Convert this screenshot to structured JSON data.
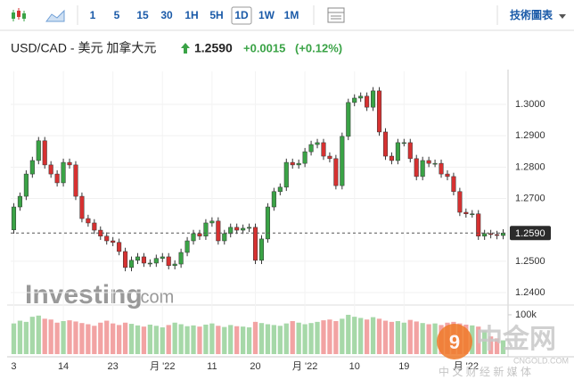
{
  "toolbar": {
    "intervals": [
      "1",
      "5",
      "15",
      "30",
      "1H",
      "5H",
      "1D",
      "1W",
      "1M"
    ],
    "selected": "1D",
    "menu": "技術圖表"
  },
  "header": {
    "pair": "USD/CAD - 美元 加拿大元",
    "price": "1.2590",
    "change": "+0.0015",
    "change_pct": "(+0.12%)"
  },
  "watermarks": {
    "brand": "Investing",
    "brand_suffix": ".com",
    "site": "中金网",
    "site_url": "CNGOLD.COM",
    "site_tagline": "中 文 财 经 新 媒 体"
  },
  "chart_data": {
    "type": "candlestick",
    "categories": [
      "3",
      null,
      null,
      null,
      null,
      null,
      null,
      null,
      "14",
      null,
      null,
      null,
      null,
      null,
      null,
      null,
      "23",
      null,
      null,
      null,
      null,
      null,
      null,
      null,
      "月 '22",
      null,
      null,
      null,
      null,
      null,
      null,
      null,
      "11",
      null,
      null,
      null,
      null,
      null,
      null,
      "20",
      null,
      null,
      null,
      null,
      null,
      null,
      null,
      "月 '22",
      null,
      null,
      null,
      null,
      null,
      null,
      null,
      "10",
      null,
      null,
      null,
      null,
      null,
      null,
      null,
      "19",
      null,
      null,
      null,
      null,
      null,
      null,
      null,
      null,
      null,
      "月 '22",
      null,
      null,
      null,
      null,
      null,
      null
    ],
    "open": [
      1.26,
      1.2673,
      1.2707,
      1.2778,
      1.2821,
      1.2884,
      1.2807,
      1.2778,
      1.275,
      1.2815,
      1.2807,
      1.2707,
      1.2636,
      1.2622,
      1.2599,
      1.258,
      1.2565,
      1.256,
      1.2531,
      1.248,
      1.2503,
      1.2514,
      1.2494,
      1.2494,
      1.2509,
      1.2514,
      1.2486,
      1.2491,
      1.2528,
      1.2565,
      1.2588,
      1.258,
      1.2622,
      1.2628,
      1.2565,
      1.2588,
      1.2608,
      1.2599,
      1.2605,
      1.2608,
      1.2503,
      1.2571,
      1.2673,
      1.2722,
      1.2736,
      1.2815,
      1.2807,
      1.2812,
      1.2849,
      1.2872,
      1.2878,
      1.2835,
      1.2827,
      1.2741,
      1.2898,
      1.3006,
      1.302,
      1.3026,
      1.2991,
      1.3043,
      1.2912,
      1.2835,
      1.2821,
      1.2878,
      1.2878,
      1.2827,
      1.277,
      1.2821,
      1.2812,
      1.2812,
      1.2778,
      1.277,
      1.2722,
      1.2656,
      1.2651,
      1.2651,
      1.258,
      1.2588,
      1.2585,
      1.2582
    ],
    "high": [
      1.2685,
      1.2719,
      1.279,
      1.2833,
      1.2896,
      1.2896,
      1.2819,
      1.279,
      1.2827,
      1.2827,
      1.2819,
      1.2719,
      1.2648,
      1.2634,
      1.2611,
      1.2592,
      1.2577,
      1.2572,
      1.2543,
      1.2515,
      1.2526,
      1.2526,
      1.2506,
      1.2521,
      1.2526,
      1.2526,
      1.2503,
      1.254,
      1.2577,
      1.26,
      1.26,
      1.2634,
      1.264,
      1.264,
      1.26,
      1.262,
      1.262,
      1.2617,
      1.262,
      1.262,
      1.2583,
      1.2685,
      1.2734,
      1.2748,
      1.2827,
      1.2827,
      1.2824,
      1.2861,
      1.2884,
      1.289,
      1.289,
      1.2847,
      1.2839,
      1.291,
      1.3018,
      1.3032,
      1.3038,
      1.3038,
      1.3055,
      1.3055,
      1.2924,
      1.2847,
      1.289,
      1.289,
      1.289,
      1.2839,
      1.2833,
      1.2833,
      1.2824,
      1.2824,
      1.279,
      1.2782,
      1.2734,
      1.2668,
      1.2663,
      1.2663,
      1.26,
      1.26,
      1.2597,
      1.2602
    ],
    "low": [
      1.2588,
      1.2661,
      1.2695,
      1.2766,
      1.2809,
      1.2795,
      1.2766,
      1.2738,
      1.2738,
      1.2795,
      1.2695,
      1.2624,
      1.261,
      1.2587,
      1.2568,
      1.2553,
      1.2548,
      1.2519,
      1.2468,
      1.2468,
      1.2491,
      1.2482,
      1.2482,
      1.2482,
      1.2497,
      1.2474,
      1.2474,
      1.2479,
      1.2516,
      1.2553,
      1.2568,
      1.2568,
      1.261,
      1.2553,
      1.2553,
      1.2576,
      1.2587,
      1.2587,
      1.2593,
      1.2491,
      1.2491,
      1.2559,
      1.2661,
      1.271,
      1.2724,
      1.2795,
      1.2795,
      1.28,
      1.2837,
      1.286,
      1.2823,
      1.2815,
      1.2729,
      1.2729,
      1.2886,
      1.2994,
      1.3008,
      1.2979,
      1.2979,
      1.29,
      1.2823,
      1.2809,
      1.2809,
      1.2866,
      1.2815,
      1.2758,
      1.2758,
      1.28,
      1.28,
      1.2766,
      1.2758,
      1.271,
      1.2644,
      1.2639,
      1.2639,
      1.2568,
      1.2568,
      1.2573,
      1.257,
      1.257
    ],
    "close": [
      1.2673,
      1.2707,
      1.2778,
      1.2821,
      1.2884,
      1.2807,
      1.2778,
      1.275,
      1.2815,
      1.2807,
      1.2707,
      1.2636,
      1.2622,
      1.2599,
      1.258,
      1.2565,
      1.256,
      1.2531,
      1.248,
      1.2503,
      1.2514,
      1.2494,
      1.2494,
      1.2509,
      1.2514,
      1.2486,
      1.2491,
      1.2528,
      1.2565,
      1.2588,
      1.258,
      1.2622,
      1.2628,
      1.2565,
      1.2588,
      1.2608,
      1.2599,
      1.2605,
      1.2608,
      1.2503,
      1.2571,
      1.2673,
      1.2722,
      1.2736,
      1.2815,
      1.2807,
      1.2812,
      1.2849,
      1.2872,
      1.2878,
      1.2835,
      1.2827,
      1.2741,
      1.2898,
      1.3006,
      1.302,
      1.3026,
      1.2991,
      1.3043,
      1.2912,
      1.2835,
      1.2821,
      1.2878,
      1.2878,
      1.2827,
      1.277,
      1.2821,
      1.2812,
      1.2812,
      1.2778,
      1.277,
      1.2722,
      1.2656,
      1.2651,
      1.2651,
      1.258,
      1.2588,
      1.2585,
      1.2582,
      1.259
    ],
    "volume": [
      78000,
      85000,
      82000,
      95000,
      98000,
      90000,
      88000,
      80000,
      84000,
      86000,
      83000,
      79000,
      76000,
      72000,
      80000,
      85000,
      78000,
      74000,
      80000,
      77000,
      73000,
      70000,
      75000,
      72000,
      68000,
      74000,
      80000,
      76000,
      71000,
      73000,
      70000,
      75000,
      78000,
      72000,
      69000,
      74000,
      71000,
      70000,
      68000,
      82000,
      79000,
      76000,
      74000,
      72000,
      78000,
      84000,
      80000,
      76000,
      79000,
      82000,
      86000,
      88000,
      84000,
      90000,
      100000,
      95000,
      92000,
      88000,
      94000,
      90000,
      85000,
      82000,
      84000,
      80000,
      87000,
      83000,
      79000,
      76000,
      78000,
      74000,
      80000,
      82000,
      78000,
      75000,
      73000,
      70000,
      60000,
      45000,
      40000,
      35000
    ],
    "colors": {
      "up": "#3aa346",
      "down": "#d63131",
      "volume_up": "#a6d8a8",
      "volume_down": "#f2a3a3"
    },
    "ylim": [
      1.2366,
      1.3091
    ],
    "yticks": [
      {
        "value": 1.24,
        "label": "1.2400"
      },
      {
        "value": 1.25,
        "label": "1.2500"
      },
      {
        "value": 1.27,
        "label": "1.2700"
      },
      {
        "value": 1.28,
        "label": "1.2800"
      },
      {
        "value": 1.29,
        "label": "1.2900"
      },
      {
        "value": 1.3,
        "label": "1.3000"
      }
    ],
    "volume_ylim": [
      0,
      118000
    ],
    "volume_ticks": [
      {
        "value": 100000,
        "label": "100k"
      }
    ],
    "last_price": {
      "value": 1.259,
      "label": "1.2590"
    },
    "grid": true
  }
}
